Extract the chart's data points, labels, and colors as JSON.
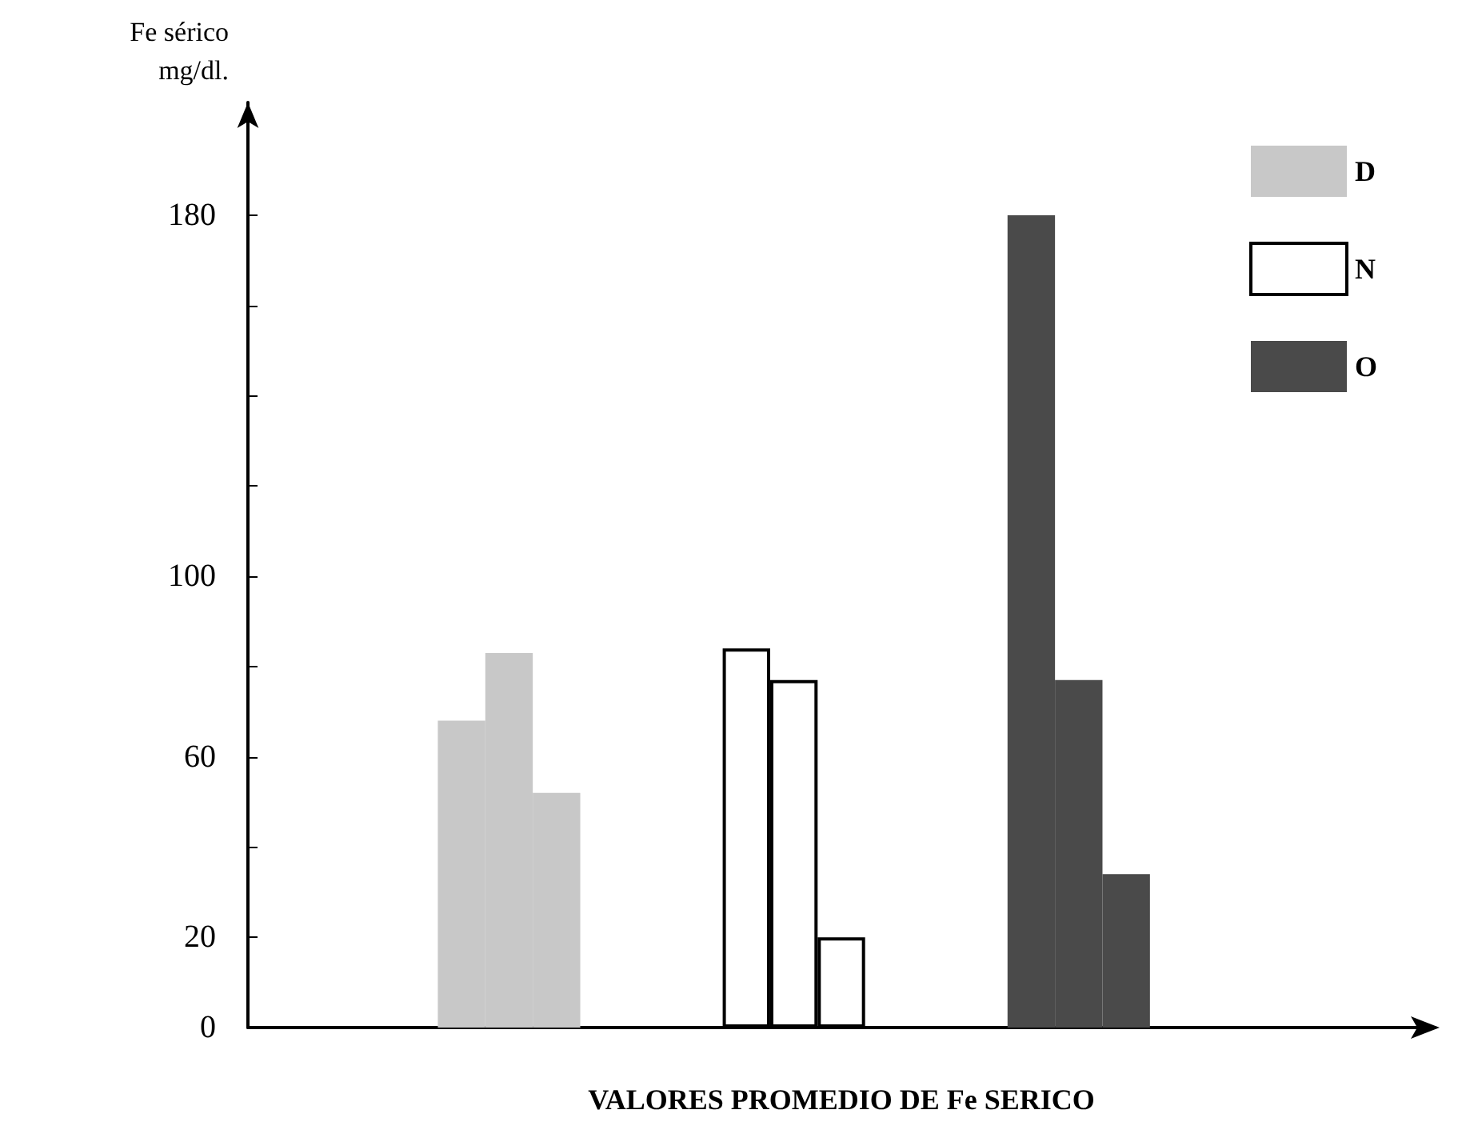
{
  "chart_data": {
    "type": "bar",
    "xlabel": "VALORES PROMEDIO DE Fe SERICO",
    "ylabel": "Fe sérico\nmg/dl.",
    "categories": [
      null,
      null,
      null,
      null,
      null,
      null,
      null,
      null,
      null,
      null,
      null,
      null,
      null,
      null,
      null,
      null,
      null,
      null,
      null,
      null,
      null,
      null,
      null,
      null,
      null
    ],
    "series": [
      {
        "name": "D",
        "color": "#c8c8c8",
        "values": [
          null,
          null,
          null,
          null,
          68,
          83,
          52,
          null,
          null,
          null,
          null,
          null,
          null,
          null,
          null,
          null,
          null,
          null,
          null,
          null,
          null,
          null,
          null,
          null,
          null
        ]
      },
      {
        "name": "N",
        "color": "#ffffff",
        "values": [
          null,
          null,
          null,
          null,
          null,
          null,
          null,
          null,
          null,
          null,
          84,
          77,
          20,
          null,
          null,
          null,
          null,
          null,
          null,
          null,
          null,
          null,
          null,
          null,
          null
        ]
      },
      {
        "name": "O",
        "color": "#4a4a4a",
        "values": [
          null,
          null,
          null,
          null,
          null,
          null,
          null,
          null,
          null,
          null,
          null,
          null,
          null,
          null,
          null,
          null,
          180,
          77,
          34,
          null,
          null,
          null,
          null,
          null,
          null
        ]
      }
    ],
    "ylim": [
      0,
      205
    ],
    "yticks": [
      0,
      20,
      {
        "value": 40,
        "label": null
      },
      60,
      {
        "value": 80,
        "label": null
      },
      100,
      {
        "value": 120,
        "label": null
      },
      {
        "value": 140,
        "label": null
      },
      {
        "value": 160,
        "label": null
      },
      180
    ],
    "legend": "top right",
    "grid": false
  }
}
